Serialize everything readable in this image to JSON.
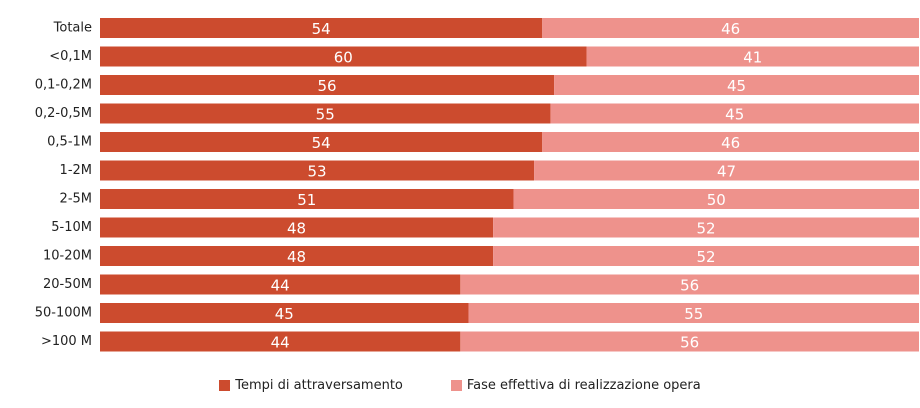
{
  "chart_data": {
    "type": "bar",
    "orientation": "horizontal",
    "stacked": true,
    "categories": [
      "Totale",
      "<0,1M",
      "0,1-0,2M",
      "0,2-0,5M",
      "0,5-1M",
      "1-2M",
      "2-5M",
      "5-10M",
      "10-20M",
      "20-50M",
      "50-100M",
      ">100 M"
    ],
    "series": [
      {
        "name": "Tempi di attraversamento",
        "color": "#cc4b2e",
        "values": [
          54,
          60,
          56,
          55,
          54,
          53,
          51,
          48,
          48,
          44,
          45,
          44
        ]
      },
      {
        "name": "Fase effettiva di realizzazione opera",
        "color": "#ee928c",
        "values": [
          46,
          41,
          45,
          45,
          46,
          47,
          50,
          52,
          52,
          56,
          55,
          56
        ]
      }
    ],
    "data_labels": true,
    "grid": false,
    "legend_position": "bottom"
  }
}
